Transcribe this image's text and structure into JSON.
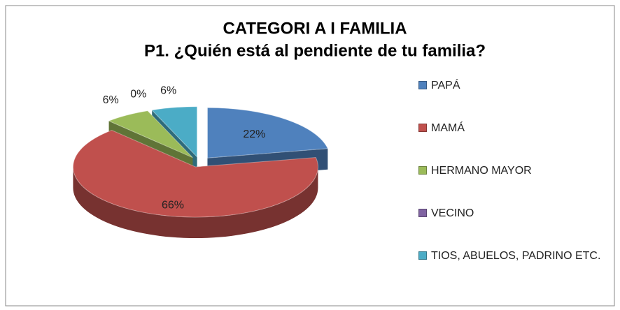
{
  "chart_data": {
    "type": "pie",
    "title": "CATEGORI A I FAMILIA",
    "subtitle": "P1. ¿Quién está al pendiente de tu familia?",
    "categories": [
      "PAPÁ",
      "MAMÁ",
      "HERMANO MAYOR",
      "VECINO",
      "TIOS, ABUELOS, PADRINO ETC."
    ],
    "values": [
      22,
      66,
      6,
      0,
      6
    ],
    "value_labels": [
      "22%",
      "66%",
      "6%",
      "0%",
      "6%"
    ],
    "colors": [
      "#4f81bd",
      "#c0504d",
      "#9bbb59",
      "#8064a2",
      "#4bacc6"
    ],
    "legend": "right"
  }
}
